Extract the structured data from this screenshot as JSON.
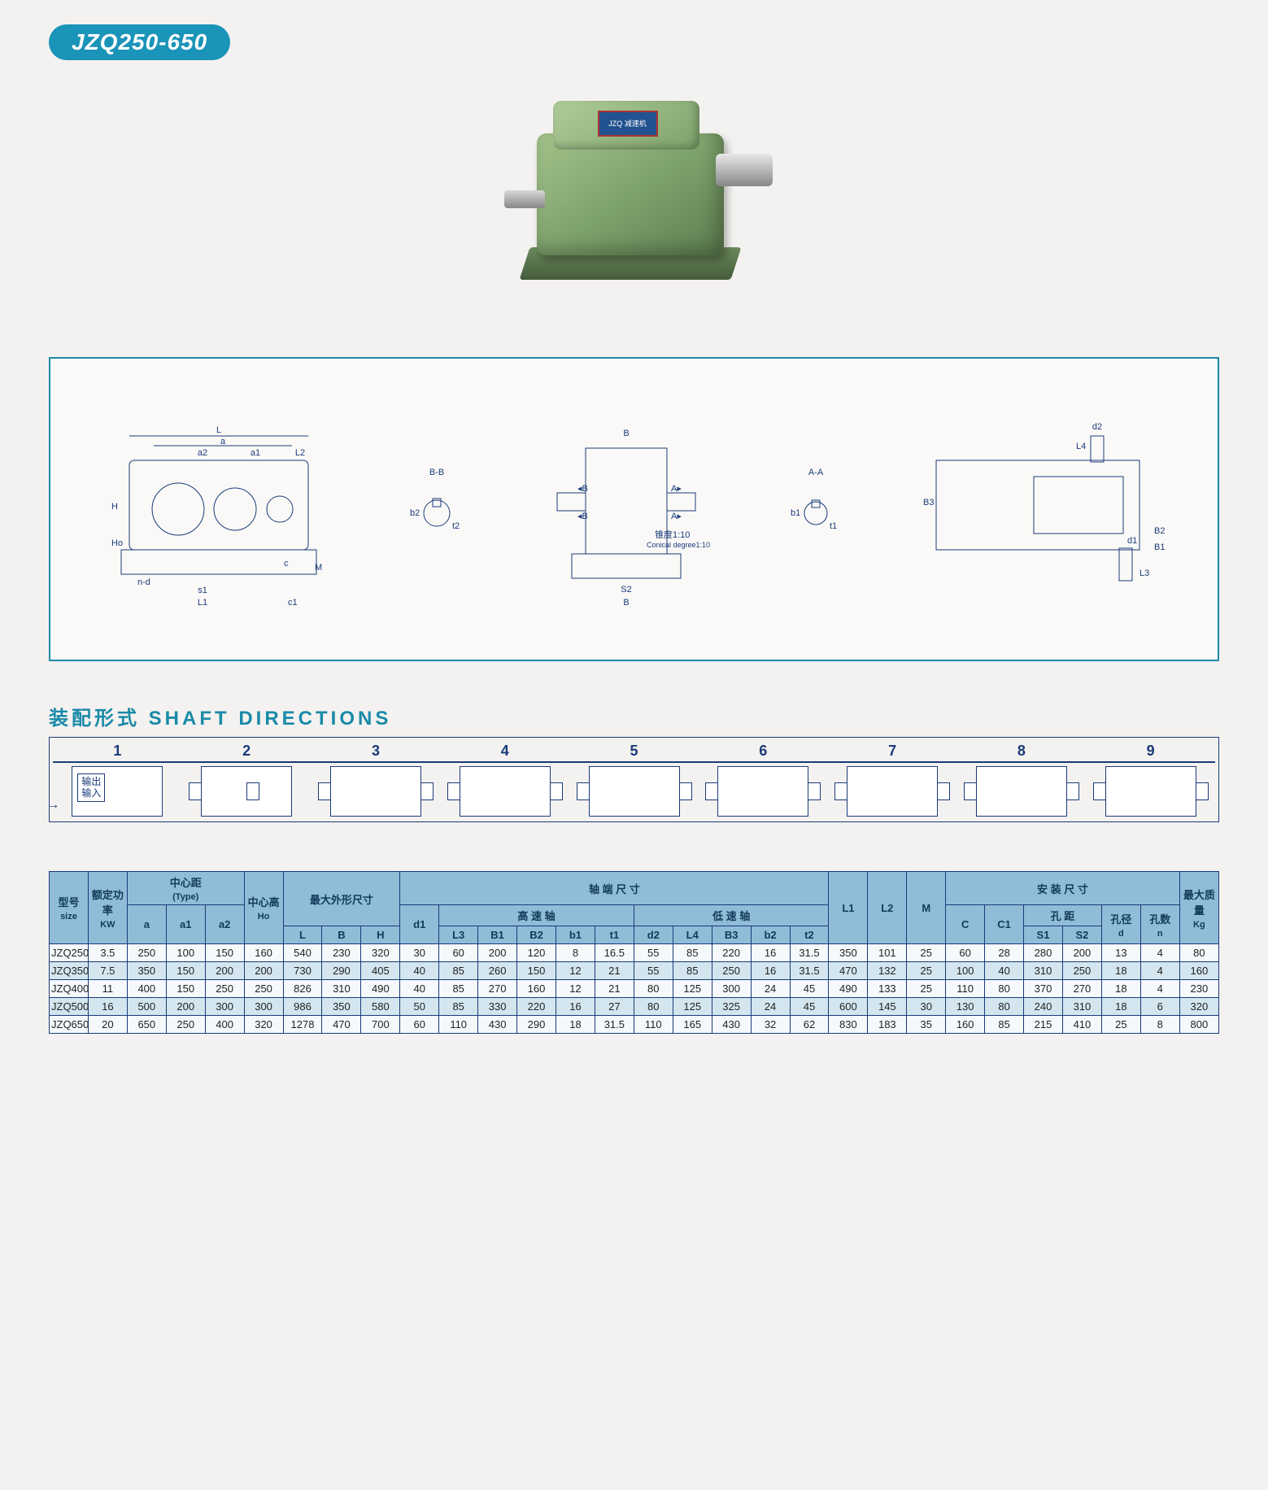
{
  "title": "JZQ250-650",
  "nameplate": "JZQ 减速机",
  "drawing": {
    "labels": {
      "L": "L",
      "a": "a",
      "a1": "a1",
      "a2": "a2",
      "L2": "L2",
      "H": "H",
      "Ho": "Ho",
      "nd": "n-d",
      "s1": "s1",
      "L1": "L1",
      "c": "c",
      "c1": "c1",
      "M": "M",
      "BB": "B-B",
      "b2": "b2",
      "t2": "t2",
      "B": "B",
      "S2": "S2",
      "Bb": "B",
      "AA": "A-A",
      "b1": "b1",
      "t1": "t1",
      "cone_cn": "锥度1:10",
      "cone_en": "Conical degree1:10",
      "d2": "d2",
      "L4": "L4",
      "B3": "B3",
      "d1": "d1",
      "L3": "L3",
      "B1": "B1",
      "B2": "B2"
    }
  },
  "shaft": {
    "heading_cn": "装配形式",
    "heading_en": "SHAFT  DIRECTIONS",
    "io_out": "输出",
    "io_in": "输入",
    "numbers": [
      "1",
      "2",
      "3",
      "4",
      "5",
      "6",
      "7",
      "8",
      "9"
    ]
  },
  "table": {
    "headers": {
      "size_cn": "型号",
      "size_en": "size",
      "kw_cn": "额定功率",
      "kw_en": "KW",
      "type_cn": "中心距",
      "type_en": "(Type)",
      "a": "a",
      "a1": "a1",
      "a2": "a2",
      "ho_cn": "中心高",
      "ho_en": "Ho",
      "overall_cn": "最大外形尺寸",
      "L": "L",
      "B": "B",
      "H": "H",
      "shaft_cn": "轴   端   尺   寸",
      "hs_cn": "高  速  轴",
      "ls_cn": "低  速  轴",
      "d1": "d1",
      "L3": "L3",
      "B1": "B1",
      "B2": "B2",
      "b1": "b1",
      "t1": "t1",
      "d2": "d2",
      "L4": "L4",
      "B3": "B3",
      "b2": "b2",
      "t2": "t2",
      "L1": "L1",
      "L2": "L2",
      "M": "M",
      "install_cn": "安  装  尺  寸",
      "C": "C",
      "C1": "C1",
      "hole_cn": "孔 距",
      "S1": "S1",
      "S2": "S2",
      "hdia_cn": "孔径",
      "hdia_en": "d",
      "hnum_cn": "孔数",
      "hnum_en": "n",
      "mass_cn": "最大质量",
      "mass_en": "Kg"
    },
    "rows": [
      {
        "size": "JZQ250",
        "kw": "3.5",
        "a": "250",
        "a1": "100",
        "a2": "150",
        "ho": "160",
        "L": "540",
        "B": "230",
        "H": "320",
        "d1": "30",
        "L3": "60",
        "B1": "200",
        "B2": "120",
        "b1": "8",
        "t1": "16.5",
        "d2": "55",
        "L4": "85",
        "B3": "220",
        "b2": "16",
        "t2": "31.5",
        "L1": "350",
        "L2": "101",
        "M": "25",
        "C": "60",
        "C1": "28",
        "S1": "280",
        "S2": "200",
        "d": "13",
        "n": "4",
        "kg": "80"
      },
      {
        "size": "JZQ350",
        "kw": "7.5",
        "a": "350",
        "a1": "150",
        "a2": "200",
        "ho": "200",
        "L": "730",
        "B": "290",
        "H": "405",
        "d1": "40",
        "L3": "85",
        "B1": "260",
        "B2": "150",
        "b1": "12",
        "t1": "21",
        "d2": "55",
        "L4": "85",
        "B3": "250",
        "b2": "16",
        "t2": "31.5",
        "L1": "470",
        "L2": "132",
        "M": "25",
        "C": "100",
        "C1": "40",
        "S1": "310",
        "S2": "250",
        "d": "18",
        "n": "4",
        "kg": "160"
      },
      {
        "size": "JZQ400",
        "kw": "11",
        "a": "400",
        "a1": "150",
        "a2": "250",
        "ho": "250",
        "L": "826",
        "B": "310",
        "H": "490",
        "d1": "40",
        "L3": "85",
        "B1": "270",
        "B2": "160",
        "b1": "12",
        "t1": "21",
        "d2": "80",
        "L4": "125",
        "B3": "300",
        "b2": "24",
        "t2": "45",
        "L1": "490",
        "L2": "133",
        "M": "25",
        "C": "110",
        "C1": "80",
        "S1": "370",
        "S2": "270",
        "d": "18",
        "n": "4",
        "kg": "230"
      },
      {
        "size": "JZQ500",
        "kw": "16",
        "a": "500",
        "a1": "200",
        "a2": "300",
        "ho": "300",
        "L": "986",
        "B": "350",
        "H": "580",
        "d1": "50",
        "L3": "85",
        "B1": "330",
        "B2": "220",
        "b1": "16",
        "t1": "27",
        "d2": "80",
        "L4": "125",
        "B3": "325",
        "b2": "24",
        "t2": "45",
        "L1": "600",
        "L2": "145",
        "M": "30",
        "C": "130",
        "C1": "80",
        "S1": "240",
        "S2": "310",
        "d": "18",
        "n": "6",
        "kg": "320"
      },
      {
        "size": "JZQ650",
        "kw": "20",
        "a": "650",
        "a1": "250",
        "a2": "400",
        "ho": "320",
        "L": "1278",
        "B": "470",
        "H": "700",
        "d1": "60",
        "L3": "110",
        "B1": "430",
        "B2": "290",
        "b1": "18",
        "t1": "31.5",
        "d2": "110",
        "L4": "165",
        "B3": "430",
        "b2": "32",
        "t2": "62",
        "L1": "830",
        "L2": "183",
        "M": "35",
        "C": "160",
        "C1": "85",
        "S1": "215",
        "S2": "410",
        "d": "25",
        "n": "8",
        "kg": "800"
      }
    ]
  },
  "colors": {
    "accent": "#1a8aa8",
    "ink": "#1a3a7a",
    "th_bg": "#8fbdd7",
    "row_even": "#d3e6ef",
    "row_odd": "#f5f9fb",
    "page_bg": "#f4f2f0"
  }
}
